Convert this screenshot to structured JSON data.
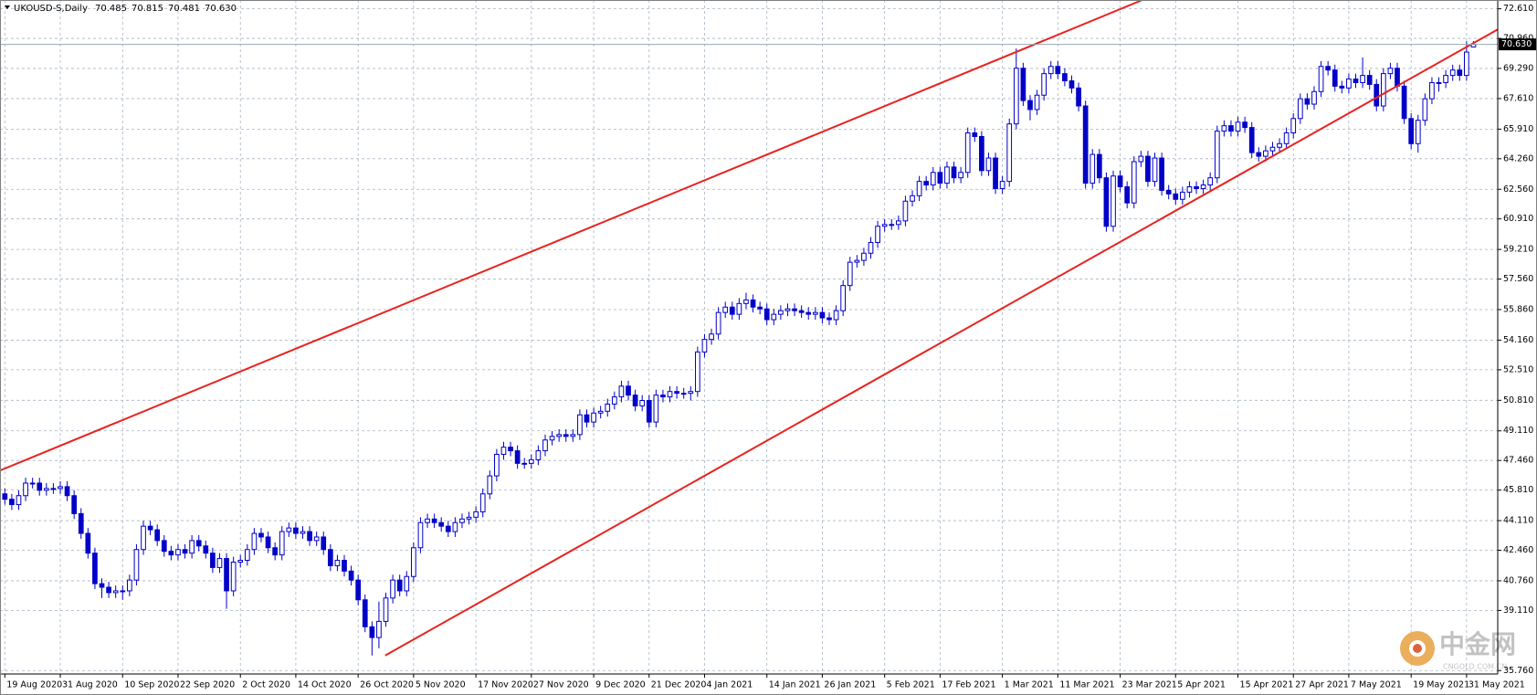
{
  "chart_data": {
    "type": "candlestick",
    "title": "UKOUSD-S,Daily",
    "ohlc_labels": [
      "70.485",
      "70.815",
      "70.481",
      "70.630"
    ],
    "last_price_label": "70.630",
    "bull_color": "#ffffff",
    "bear_color": "#0000c8",
    "wick_color": "#0000c8",
    "grid": true,
    "xlim": [
      -0.7,
      215.5
    ],
    "ylim": [
      35.57,
      73.1
    ],
    "yticks": [
      {
        "value": 72.61,
        "label": "72.610"
      },
      {
        "value": 70.96,
        "label": "70.960"
      },
      {
        "value": 69.29,
        "label": "69.290"
      },
      {
        "value": 67.61,
        "label": "67.610"
      },
      {
        "value": 65.91,
        "label": "65.910"
      },
      {
        "value": 64.26,
        "label": "64.260"
      },
      {
        "value": 62.56,
        "label": "62.560"
      },
      {
        "value": 60.91,
        "label": "60.910"
      },
      {
        "value": 59.21,
        "label": "59.210"
      },
      {
        "value": 57.56,
        "label": "57.560"
      },
      {
        "value": 55.86,
        "label": "55.860"
      },
      {
        "value": 54.16,
        "label": "54.160"
      },
      {
        "value": 52.51,
        "label": "52.510"
      },
      {
        "value": 50.81,
        "label": "50.810"
      },
      {
        "value": 49.11,
        "label": "49.110"
      },
      {
        "value": 47.46,
        "label": "47.460"
      },
      {
        "value": 45.81,
        "label": "45.810"
      },
      {
        "value": 44.11,
        "label": "44.110"
      },
      {
        "value": 42.46,
        "label": "42.460"
      },
      {
        "value": 40.76,
        "label": "40.760"
      },
      {
        "value": 39.11,
        "label": "39.110"
      },
      {
        "value": 35.76,
        "label": "35.760"
      }
    ],
    "xticks": [
      {
        "value": 0,
        "label": "19 Aug 2020"
      },
      {
        "value": 8,
        "label": "31 Aug 2020"
      },
      {
        "value": 17,
        "label": "10 Sep 2020"
      },
      {
        "value": 25,
        "label": "22 Sep 2020"
      },
      {
        "value": 34,
        "label": "2 Oct 2020"
      },
      {
        "value": 42,
        "label": "14 Oct 2020"
      },
      {
        "value": 51,
        "label": "26 Oct 2020"
      },
      {
        "value": 59,
        "label": "5 Nov 2020"
      },
      {
        "value": 68,
        "label": "17 Nov 2020"
      },
      {
        "value": 76,
        "label": "27 Nov 2020"
      },
      {
        "value": 85,
        "label": "9 Dec 2020"
      },
      {
        "value": 93,
        "label": "21 Dec 2020"
      },
      {
        "value": 101,
        "label": "4 Jan 2021"
      },
      {
        "value": 110,
        "label": "14 Jan 2021"
      },
      {
        "value": 118,
        "label": "26 Jan 2021"
      },
      {
        "value": 127,
        "label": "5 Feb 2021"
      },
      {
        "value": 135,
        "label": "17 Feb 2021"
      },
      {
        "value": 144,
        "label": "1 Mar 2021"
      },
      {
        "value": 152,
        "label": "11 Mar 2021"
      },
      {
        "value": 161,
        "label": "23 Mar 2021"
      },
      {
        "value": 169,
        "label": "5 Apr 2021"
      },
      {
        "value": 178,
        "label": "15 Apr 2021"
      },
      {
        "value": 186,
        "label": "27 Apr 2021"
      },
      {
        "value": 194,
        "label": "7 May 2021"
      },
      {
        "value": 203,
        "label": "19 May 2021"
      },
      {
        "value": 211,
        "label": "31 May 2021"
      }
    ],
    "trendlines": [
      {
        "x": [
          -0.7,
          164.2
        ],
        "y": [
          46.9,
          73.1
        ],
        "color": "#e8231f"
      },
      {
        "x": [
          54.9,
          215.5
        ],
        "y": [
          36.6,
          71.46
        ],
        "color": "#e8231f"
      }
    ],
    "values": [
      [
        45.6,
        45.9,
        45.0,
        45.3
      ],
      [
        45.3,
        45.6,
        44.7,
        45.0
      ],
      [
        45.0,
        45.8,
        44.7,
        45.5
      ],
      [
        45.5,
        46.5,
        45.2,
        46.2
      ],
      [
        46.2,
        46.5,
        45.9,
        46.2
      ],
      [
        46.2,
        46.5,
        45.5,
        45.8
      ],
      [
        45.8,
        46.2,
        45.5,
        45.9
      ],
      [
        45.9,
        46.2,
        45.6,
        45.9
      ],
      [
        45.9,
        46.3,
        45.6,
        46.0
      ],
      [
        46.0,
        46.3,
        45.2,
        45.5
      ],
      [
        45.5,
        45.8,
        44.2,
        44.5
      ],
      [
        44.5,
        44.8,
        43.1,
        43.4
      ],
      [
        43.4,
        43.7,
        42.0,
        42.3
      ],
      [
        42.3,
        42.6,
        40.3,
        40.6
      ],
      [
        40.6,
        40.9,
        39.8,
        40.4
      ],
      [
        40.4,
        40.7,
        39.8,
        40.1
      ],
      [
        40.1,
        40.5,
        39.8,
        40.2
      ],
      [
        40.2,
        40.5,
        39.7,
        40.2
      ],
      [
        40.2,
        41.1,
        39.9,
        40.8
      ],
      [
        40.8,
        42.8,
        40.5,
        42.5
      ],
      [
        42.5,
        44.1,
        42.2,
        43.8
      ],
      [
        43.8,
        44.1,
        43.3,
        43.6
      ],
      [
        43.6,
        43.9,
        42.7,
        43.0
      ],
      [
        43.0,
        43.3,
        42.1,
        42.4
      ],
      [
        42.4,
        42.7,
        41.9,
        42.2
      ],
      [
        42.2,
        42.8,
        41.9,
        42.5
      ],
      [
        42.5,
        42.8,
        42.0,
        42.3
      ],
      [
        42.3,
        43.3,
        42.0,
        43.0
      ],
      [
        43.0,
        43.3,
        42.4,
        42.7
      ],
      [
        42.7,
        43.0,
        42.0,
        42.3
      ],
      [
        42.3,
        42.6,
        41.2,
        41.5
      ],
      [
        41.5,
        42.3,
        41.2,
        42.0
      ],
      [
        42.0,
        42.3,
        39.2,
        40.2
      ],
      [
        40.2,
        42.1,
        39.9,
        41.8
      ],
      [
        41.8,
        42.2,
        41.5,
        41.9
      ],
      [
        41.9,
        42.8,
        41.6,
        42.5
      ],
      [
        42.5,
        43.7,
        42.2,
        43.4
      ],
      [
        43.4,
        43.7,
        42.9,
        43.2
      ],
      [
        43.2,
        43.5,
        42.3,
        42.6
      ],
      [
        42.6,
        42.9,
        41.9,
        42.2
      ],
      [
        42.2,
        43.8,
        41.9,
        43.5
      ],
      [
        43.5,
        44.0,
        43.2,
        43.7
      ],
      [
        43.7,
        44.0,
        43.1,
        43.4
      ],
      [
        43.4,
        43.8,
        43.1,
        43.5
      ],
      [
        43.5,
        43.8,
        42.7,
        43.0
      ],
      [
        43.0,
        43.5,
        42.7,
        43.2
      ],
      [
        43.2,
        43.5,
        42.2,
        42.5
      ],
      [
        42.5,
        42.8,
        41.3,
        41.6
      ],
      [
        41.6,
        42.2,
        41.3,
        41.9
      ],
      [
        41.9,
        42.2,
        41.0,
        41.3
      ],
      [
        41.3,
        41.6,
        40.5,
        40.8
      ],
      [
        40.8,
        41.1,
        39.4,
        39.7
      ],
      [
        39.7,
        40.0,
        37.9,
        38.2
      ],
      [
        38.2,
        38.5,
        36.6,
        37.6
      ],
      [
        37.6,
        39.6,
        37.0,
        38.5
      ],
      [
        38.5,
        40.1,
        38.2,
        39.8
      ],
      [
        39.8,
        41.1,
        39.5,
        40.8
      ],
      [
        40.8,
        41.1,
        39.9,
        40.2
      ],
      [
        40.2,
        41.3,
        39.9,
        41.0
      ],
      [
        41.0,
        42.9,
        40.7,
        42.6
      ],
      [
        42.6,
        44.3,
        42.3,
        44.0
      ],
      [
        44.0,
        44.5,
        43.7,
        44.2
      ],
      [
        44.2,
        44.5,
        43.7,
        44.0
      ],
      [
        44.0,
        44.3,
        43.5,
        43.8
      ],
      [
        43.8,
        44.1,
        43.2,
        43.5
      ],
      [
        43.5,
        44.3,
        43.2,
        44.0
      ],
      [
        44.0,
        44.5,
        43.7,
        44.2
      ],
      [
        44.2,
        44.6,
        43.9,
        44.3
      ],
      [
        44.3,
        44.9,
        44.0,
        44.6
      ],
      [
        44.6,
        45.9,
        44.3,
        45.6
      ],
      [
        45.6,
        46.9,
        45.3,
        46.6
      ],
      [
        46.6,
        48.1,
        46.3,
        47.8
      ],
      [
        47.8,
        48.5,
        47.5,
        48.2
      ],
      [
        48.2,
        48.5,
        47.7,
        48.0
      ],
      [
        48.0,
        48.3,
        47.0,
        47.3
      ],
      [
        47.3,
        47.6,
        47.0,
        47.3
      ],
      [
        47.3,
        47.8,
        47.0,
        47.5
      ],
      [
        47.5,
        48.3,
        47.2,
        48.0
      ],
      [
        48.0,
        48.9,
        47.7,
        48.6
      ],
      [
        48.6,
        49.1,
        48.3,
        48.8
      ],
      [
        48.8,
        49.2,
        48.5,
        48.9
      ],
      [
        48.9,
        49.2,
        48.5,
        48.8
      ],
      [
        48.8,
        49.2,
        48.5,
        48.9
      ],
      [
        48.9,
        50.3,
        48.6,
        50.0
      ],
      [
        50.0,
        50.3,
        49.3,
        49.6
      ],
      [
        49.6,
        50.4,
        49.3,
        50.1
      ],
      [
        50.1,
        50.5,
        49.8,
        50.2
      ],
      [
        50.2,
        50.9,
        49.9,
        50.6
      ],
      [
        50.6,
        51.3,
        50.3,
        51.0
      ],
      [
        51.0,
        51.9,
        50.7,
        51.6
      ],
      [
        51.6,
        51.9,
        50.8,
        51.1
      ],
      [
        51.1,
        51.4,
        50.2,
        50.5
      ],
      [
        50.5,
        51.1,
        50.2,
        50.8
      ],
      [
        50.8,
        51.1,
        49.3,
        49.6
      ],
      [
        49.6,
        51.4,
        49.3,
        51.1
      ],
      [
        51.1,
        51.4,
        50.7,
        51.0
      ],
      [
        51.0,
        51.6,
        50.7,
        51.3
      ],
      [
        51.3,
        51.6,
        50.9,
        51.2
      ],
      [
        51.2,
        51.5,
        50.9,
        51.2
      ],
      [
        51.2,
        51.6,
        50.8,
        51.3
      ],
      [
        51.3,
        53.8,
        51.0,
        53.5
      ],
      [
        53.5,
        54.5,
        53.2,
        54.2
      ],
      [
        54.2,
        54.8,
        53.9,
        54.5
      ],
      [
        54.5,
        56.0,
        54.2,
        55.7
      ],
      [
        55.7,
        56.3,
        55.4,
        56.0
      ],
      [
        56.0,
        56.3,
        55.3,
        55.6
      ],
      [
        55.6,
        56.5,
        55.3,
        56.2
      ],
      [
        56.2,
        56.8,
        55.9,
        56.4
      ],
      [
        56.4,
        56.7,
        55.7,
        56.0
      ],
      [
        56.0,
        56.3,
        55.6,
        55.9
      ],
      [
        55.9,
        56.2,
        55.0,
        55.3
      ],
      [
        55.3,
        55.9,
        55.0,
        55.6
      ],
      [
        55.6,
        56.1,
        55.3,
        55.8
      ],
      [
        55.8,
        56.2,
        55.5,
        55.9
      ],
      [
        55.9,
        56.2,
        55.5,
        55.8
      ],
      [
        55.8,
        56.1,
        55.4,
        55.7
      ],
      [
        55.7,
        56.0,
        55.3,
        55.6
      ],
      [
        55.6,
        56.0,
        55.3,
        55.7
      ],
      [
        55.7,
        56.0,
        55.1,
        55.4
      ],
      [
        55.4,
        55.7,
        55.0,
        55.3
      ],
      [
        55.3,
        56.1,
        55.0,
        55.8
      ],
      [
        55.8,
        57.5,
        55.5,
        57.2
      ],
      [
        57.2,
        58.8,
        56.9,
        58.5
      ],
      [
        58.5,
        58.9,
        58.2,
        58.6
      ],
      [
        58.6,
        59.3,
        58.3,
        59.0
      ],
      [
        59.0,
        59.9,
        58.7,
        59.6
      ],
      [
        59.6,
        60.8,
        59.3,
        60.5
      ],
      [
        60.5,
        60.9,
        60.2,
        60.6
      ],
      [
        60.6,
        60.9,
        60.3,
        60.6
      ],
      [
        60.6,
        61.1,
        60.3,
        60.8
      ],
      [
        60.8,
        62.2,
        60.5,
        61.9
      ],
      [
        61.9,
        62.5,
        61.6,
        62.2
      ],
      [
        62.2,
        63.3,
        61.9,
        63.0
      ],
      [
        63.0,
        63.3,
        62.5,
        62.8
      ],
      [
        62.8,
        63.8,
        62.5,
        63.5
      ],
      [
        63.5,
        63.8,
        62.6,
        62.9
      ],
      [
        62.9,
        64.1,
        62.6,
        63.8
      ],
      [
        63.8,
        64.1,
        62.9,
        63.2
      ],
      [
        63.2,
        63.8,
        62.9,
        63.5
      ],
      [
        63.5,
        66.0,
        63.2,
        65.7
      ],
      [
        65.7,
        66.0,
        65.2,
        65.5
      ],
      [
        65.5,
        65.8,
        63.3,
        63.6
      ],
      [
        63.6,
        64.6,
        63.3,
        64.3
      ],
      [
        64.3,
        64.6,
        62.3,
        62.6
      ],
      [
        62.6,
        63.3,
        62.3,
        63.0
      ],
      [
        63.0,
        66.5,
        62.7,
        66.2
      ],
      [
        66.2,
        70.4,
        65.9,
        69.3
      ],
      [
        69.3,
        69.6,
        67.2,
        67.5
      ],
      [
        67.5,
        67.8,
        66.4,
        67.0
      ],
      [
        67.0,
        68.1,
        66.7,
        67.8
      ],
      [
        67.8,
        69.3,
        67.5,
        69.0
      ],
      [
        69.0,
        69.7,
        68.7,
        69.4
      ],
      [
        69.4,
        69.7,
        68.7,
        69.0
      ],
      [
        69.0,
        69.3,
        68.3,
        68.6
      ],
      [
        68.6,
        68.9,
        67.9,
        68.2
      ],
      [
        68.2,
        68.5,
        66.9,
        67.2
      ],
      [
        67.2,
        67.5,
        62.6,
        62.9
      ],
      [
        62.9,
        64.8,
        62.6,
        64.5
      ],
      [
        64.5,
        64.8,
        62.9,
        63.2
      ],
      [
        63.2,
        63.5,
        60.2,
        60.5
      ],
      [
        60.5,
        63.6,
        60.2,
        63.3
      ],
      [
        63.3,
        63.6,
        62.4,
        62.7
      ],
      [
        62.7,
        63.0,
        61.5,
        61.8
      ],
      [
        61.8,
        64.4,
        61.5,
        64.1
      ],
      [
        64.1,
        64.7,
        63.8,
        64.4
      ],
      [
        64.4,
        64.7,
        62.7,
        63.0
      ],
      [
        63.0,
        64.6,
        62.7,
        64.3
      ],
      [
        64.3,
        64.6,
        62.2,
        62.5
      ],
      [
        62.5,
        62.8,
        62.0,
        62.3
      ],
      [
        62.3,
        62.6,
        61.7,
        62.0
      ],
      [
        62.0,
        62.7,
        61.7,
        62.4
      ],
      [
        62.4,
        63.0,
        62.1,
        62.7
      ],
      [
        62.7,
        63.0,
        62.3,
        62.6
      ],
      [
        62.6,
        63.1,
        62.3,
        62.8
      ],
      [
        62.8,
        63.5,
        62.5,
        63.2
      ],
      [
        63.2,
        66.1,
        62.9,
        65.8
      ],
      [
        65.8,
        66.4,
        65.5,
        66.1
      ],
      [
        66.1,
        66.4,
        65.5,
        65.8
      ],
      [
        65.8,
        66.6,
        65.5,
        66.3
      ],
      [
        66.3,
        66.6,
        65.7,
        66.0
      ],
      [
        66.0,
        66.3,
        64.3,
        64.6
      ],
      [
        64.6,
        64.9,
        64.1,
        64.4
      ],
      [
        64.4,
        65.0,
        64.1,
        64.7
      ],
      [
        64.7,
        65.2,
        64.4,
        64.9
      ],
      [
        64.9,
        65.4,
        64.6,
        65.1
      ],
      [
        65.1,
        66.0,
        64.8,
        65.7
      ],
      [
        65.7,
        66.8,
        65.4,
        66.5
      ],
      [
        66.5,
        67.9,
        66.2,
        67.6
      ],
      [
        67.6,
        67.9,
        67.0,
        67.3
      ],
      [
        67.3,
        68.3,
        67.0,
        68.0
      ],
      [
        68.0,
        69.7,
        67.7,
        69.4
      ],
      [
        69.4,
        69.7,
        68.9,
        69.2
      ],
      [
        69.2,
        69.5,
        68.0,
        68.3
      ],
      [
        68.3,
        68.6,
        67.9,
        68.2
      ],
      [
        68.2,
        69.0,
        67.9,
        68.7
      ],
      [
        68.7,
        69.0,
        68.2,
        68.5
      ],
      [
        68.5,
        69.9,
        68.2,
        68.9
      ],
      [
        68.9,
        69.2,
        68.1,
        68.4
      ],
      [
        68.4,
        68.7,
        66.9,
        67.2
      ],
      [
        67.2,
        69.3,
        66.9,
        69.0
      ],
      [
        69.0,
        69.6,
        68.7,
        69.3
      ],
      [
        69.3,
        69.6,
        68.0,
        68.3
      ],
      [
        68.3,
        68.6,
        66.2,
        66.5
      ],
      [
        66.5,
        66.8,
        64.8,
        65.1
      ],
      [
        65.1,
        66.7,
        64.6,
        66.4
      ],
      [
        66.4,
        67.9,
        66.1,
        67.6
      ],
      [
        67.6,
        68.8,
        67.3,
        68.5
      ],
      [
        68.5,
        68.8,
        68.0,
        68.5
      ],
      [
        68.5,
        69.2,
        68.2,
        68.9
      ],
      [
        68.9,
        69.5,
        68.6,
        69.2
      ],
      [
        69.2,
        69.5,
        68.6,
        68.9
      ],
      [
        68.9,
        70.8,
        68.6,
        70.2
      ],
      [
        70.485,
        70.815,
        70.481,
        70.63
      ]
    ]
  },
  "watermark": {
    "text": "中金网",
    "subtext": "CNGOLD.COM.CN"
  }
}
